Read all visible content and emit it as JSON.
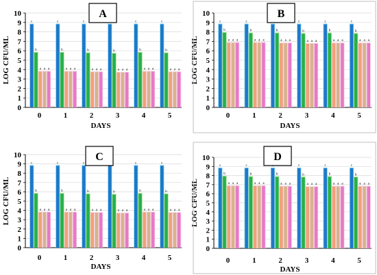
{
  "colors": {
    "dark_blue": "#1f78c8",
    "light_blue": "#7fd4ee",
    "green": "#26b04d",
    "light_green": "#a6e08a",
    "salmon": "#f2a07a",
    "tan": "#d6b48c",
    "pink": "#e878c8",
    "grid": "#d8d8d8",
    "axis": "#000000"
  },
  "chart_data": [
    {
      "panel": "A",
      "type": "bar",
      "xlabel": "DAYS",
      "ylabel": "LOG CFU/ML",
      "ylim": [
        0,
        10
      ],
      "yticks": [
        "0",
        "1",
        "2",
        "3",
        "4",
        "5",
        "6",
        "7",
        "8",
        "9",
        "10"
      ],
      "categories": [
        "0",
        "1",
        "2",
        "3",
        "4",
        "5"
      ],
      "series": [
        {
          "values": [
            8.8,
            8.8,
            8.8,
            8.8,
            8.8,
            8.8
          ],
          "labels": [
            "c",
            "c",
            "c",
            "c",
            "c",
            "c"
          ],
          "color": "#1f78c8"
        },
        {
          "values": [
            5.8,
            5.8,
            5.75,
            5.7,
            5.8,
            5.75
          ],
          "labels": [
            "b",
            "b",
            "b",
            "b",
            "b",
            "b"
          ],
          "color": "#26b04d"
        },
        {
          "values": [
            3.8,
            3.8,
            3.75,
            3.7,
            3.8,
            3.75
          ],
          "labels": [
            "a",
            "a",
            "a",
            "a",
            "a",
            "a"
          ],
          "color": "#f2a07a"
        },
        {
          "values": [
            3.8,
            3.8,
            3.75,
            3.7,
            3.8,
            3.75
          ],
          "labels": [
            "a",
            "a",
            "a",
            "a",
            "a",
            "a"
          ],
          "color": "#d6b48c"
        },
        {
          "values": [
            3.8,
            3.8,
            3.75,
            3.7,
            3.8,
            3.75
          ],
          "labels": [
            "a",
            "a",
            "a",
            "a",
            "a",
            "a"
          ],
          "color": "#e878c8"
        }
      ]
    },
    {
      "panel": "B",
      "type": "bar",
      "xlabel": "DAYS",
      "ylabel": "LOG CFU/ML",
      "ylim": [
        0,
        10
      ],
      "yticks": [
        "0",
        "1",
        "2",
        "3",
        "4",
        "5",
        "6",
        "7",
        "8",
        "9",
        "10"
      ],
      "categories": [
        "0",
        "1",
        "2",
        "3",
        "4",
        "5"
      ],
      "series": [
        {
          "values": [
            8.8,
            8.8,
            8.8,
            8.8,
            8.8,
            8.8
          ],
          "labels": [
            "c",
            "c",
            "c",
            "c",
            "c",
            "c"
          ],
          "color": "#1f78c8"
        },
        {
          "values": [
            7.9,
            7.85,
            7.85,
            7.8,
            7.85,
            7.8
          ],
          "labels": [
            "b",
            "b",
            "b",
            "b",
            "b",
            "b"
          ],
          "color": "#26b04d"
        },
        {
          "values": [
            6.85,
            6.85,
            6.8,
            6.75,
            6.8,
            6.8
          ],
          "labels": [
            "a",
            "a",
            "a",
            "a",
            "a",
            "a"
          ],
          "color": "#f2a07a"
        },
        {
          "values": [
            6.85,
            6.85,
            6.8,
            6.75,
            6.8,
            6.8
          ],
          "labels": [
            "a",
            "a",
            "a",
            "a",
            "a",
            "a"
          ],
          "color": "#d6b48c"
        },
        {
          "values": [
            6.85,
            6.85,
            6.8,
            6.75,
            6.8,
            6.8
          ],
          "labels": [
            "a",
            "a",
            "a",
            "a",
            "a",
            "a"
          ],
          "color": "#e878c8"
        }
      ]
    },
    {
      "panel": "C",
      "type": "bar",
      "xlabel": "DAYS",
      "ylabel": "LOG CFU/ML",
      "ylim": [
        0,
        10
      ],
      "yticks": [
        "0",
        "1",
        "2",
        "3",
        "4",
        "5",
        "6",
        "7",
        "8",
        "9",
        "10"
      ],
      "categories": [
        "0",
        "1",
        "2",
        "3",
        "4",
        "5"
      ],
      "series": [
        {
          "values": [
            8.8,
            8.8,
            8.8,
            8.8,
            8.8,
            8.8
          ],
          "labels": [
            "c",
            "c",
            "c",
            "c",
            "c",
            "c"
          ],
          "color": "#1f78c8"
        },
        {
          "values": [
            5.8,
            5.8,
            5.75,
            5.7,
            5.8,
            5.75
          ],
          "labels": [
            "b",
            "b",
            "b",
            "b",
            "b",
            "b"
          ],
          "color": "#26b04d"
        },
        {
          "values": [
            3.8,
            3.8,
            3.75,
            3.7,
            3.8,
            3.75
          ],
          "labels": [
            "a",
            "a",
            "a",
            "a",
            "a",
            "a"
          ],
          "color": "#f2a07a"
        },
        {
          "values": [
            3.8,
            3.8,
            3.75,
            3.7,
            3.8,
            3.75
          ],
          "labels": [
            "a",
            "a",
            "a",
            "a",
            "a",
            "a"
          ],
          "color": "#d6b48c"
        },
        {
          "values": [
            3.8,
            3.8,
            3.75,
            3.7,
            3.8,
            3.75
          ],
          "labels": [
            "a",
            "a",
            "a",
            "a",
            "a",
            "a"
          ],
          "color": "#e878c8"
        }
      ]
    },
    {
      "panel": "D",
      "type": "bar",
      "xlabel": "DAYS",
      "ylabel": "LOG CFU/ML",
      "ylim": [
        0,
        10
      ],
      "yticks": [
        "0",
        "1",
        "2",
        "3",
        "4",
        "5",
        "6",
        "7",
        "8",
        "9",
        "10"
      ],
      "categories": [
        "0",
        "1",
        "2",
        "3",
        "4",
        "5"
      ],
      "series": [
        {
          "values": [
            8.8,
            8.8,
            8.8,
            8.8,
            8.8,
            8.8
          ],
          "labels": [
            "c",
            "c",
            "c",
            "c",
            "c",
            "c"
          ],
          "color": "#1f78c8"
        },
        {
          "values": [
            7.9,
            7.85,
            7.85,
            7.8,
            7.85,
            7.8
          ],
          "labels": [
            "b",
            "b",
            "b",
            "b",
            "b",
            "b"
          ],
          "color": "#26b04d"
        },
        {
          "values": [
            6.85,
            6.85,
            6.8,
            6.75,
            6.8,
            6.8
          ],
          "labels": [
            "a",
            "a",
            "a",
            "a",
            "a",
            "a"
          ],
          "color": "#f2a07a"
        },
        {
          "values": [
            6.85,
            6.85,
            6.8,
            6.75,
            6.8,
            6.8
          ],
          "labels": [
            "a",
            "a",
            "a",
            "a",
            "a",
            "a"
          ],
          "color": "#d6b48c"
        },
        {
          "values": [
            6.85,
            6.85,
            6.8,
            6.75,
            6.8,
            6.8
          ],
          "labels": [
            "a",
            "a",
            "a",
            "a",
            "a",
            "a"
          ],
          "color": "#e878c8"
        }
      ]
    }
  ]
}
